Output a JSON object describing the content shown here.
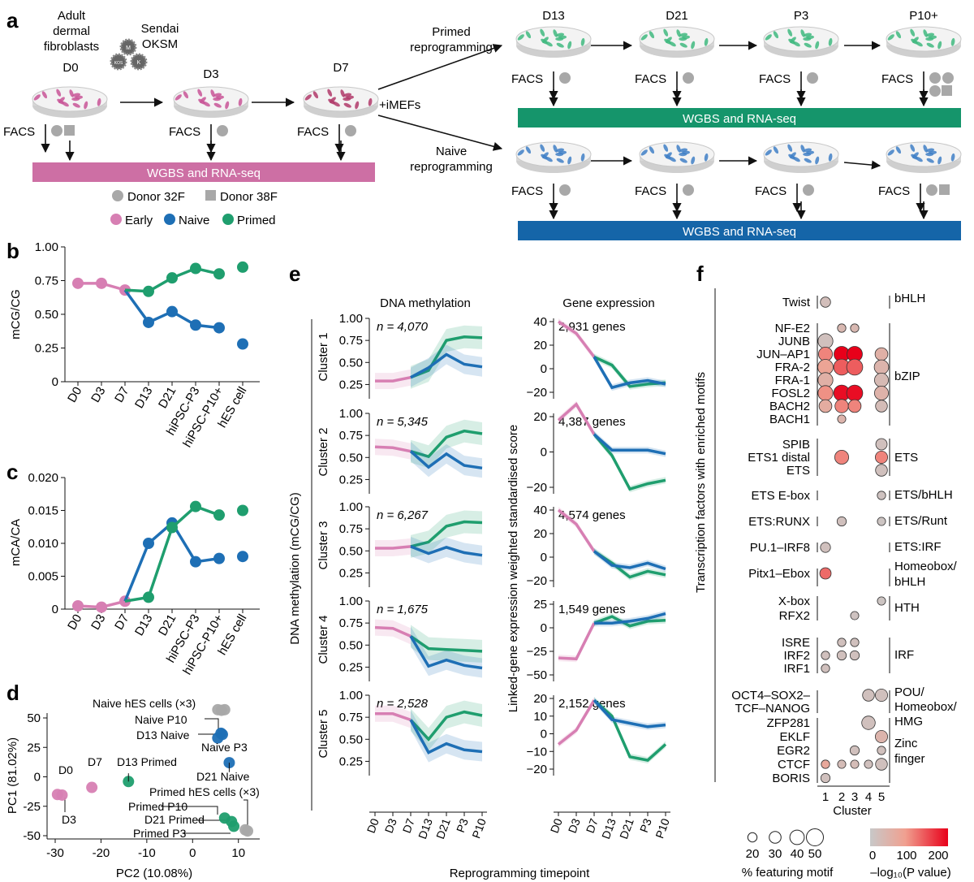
{
  "panels": {
    "a": "a",
    "b": "b",
    "c": "c",
    "d": "d",
    "e": "e",
    "f": "f"
  },
  "colors": {
    "early": "#d77fb3",
    "naive": "#1e6fb5",
    "primed": "#1f9e6e",
    "grey": "#a8a8a8",
    "wgbs_early": "#cd6fa4",
    "wgbs_primed": "#15956b",
    "wgbs_naive": "#1565a8",
    "dish_rim": "#dcdcdc",
    "cells_early": "#c85596",
    "cells_primed": "#3fb97f",
    "cells_naive": "#3f7fc6"
  },
  "panel_a": {
    "source_label": [
      "Adult",
      "dermal",
      "fibroblasts"
    ],
    "virus_label": [
      "Sendai",
      "OKSM"
    ],
    "virus_letters": [
      "M",
      "KOS",
      "K"
    ],
    "days_early": [
      "D0",
      "D3",
      "D7"
    ],
    "days_late": [
      "D13",
      "D21",
      "P3",
      "P10+"
    ],
    "facs": "FACS",
    "imefs": "+iMEFs",
    "primed_route": [
      "Primed",
      "reprogramming"
    ],
    "naive_route": [
      "Naive",
      "reprogramming"
    ],
    "wgbs_label": "WGBS and RNA-seq",
    "donor_circle": "Donor 32F",
    "donor_square": "Donor 38F",
    "legend": [
      "Early",
      "Naive",
      "Primed"
    ]
  },
  "chart_data": [
    {
      "id": "b",
      "type": "line",
      "ylabel": "mCG/CG",
      "ylim": [
        0,
        1.0
      ],
      "yticks": [
        "0",
        "0.25",
        "0.50",
        "0.75",
        "1.00"
      ],
      "categories": [
        "D0",
        "D3",
        "D7",
        "D13",
        "D21",
        "hiPSC-P3",
        "hiPSC-P10+",
        "hES cell"
      ],
      "early": [
        0.73,
        0.73,
        0.68
      ],
      "naive": [
        0.68,
        0.44,
        0.52,
        0.42,
        0.4
      ],
      "primed": [
        0.68,
        0.67,
        0.77,
        0.84,
        0.8
      ],
      "naive_hes": 0.28,
      "primed_hes": 0.85
    },
    {
      "id": "c",
      "type": "line",
      "ylabel": "mCA/CA",
      "ylim": [
        0,
        0.02
      ],
      "yticks": [
        "0",
        "0.005",
        "0.010",
        "0.015",
        "0.020"
      ],
      "categories": [
        "D0",
        "D3",
        "D7",
        "D13",
        "D21",
        "hiPSC-P3",
        "hiPSC-P10+",
        "hES cell"
      ],
      "early": [
        0.0005,
        0.0003,
        0.0012
      ],
      "naive": [
        0.0012,
        0.01,
        0.0131,
        0.0072,
        0.0077
      ],
      "primed": [
        0.0012,
        0.0018,
        0.0124,
        0.0156,
        0.0143
      ],
      "naive_hes": 0.008,
      "primed_hes": 0.015
    },
    {
      "id": "d",
      "type": "scatter",
      "xlabel": "PC2 (10.08%)",
      "ylabel": "PC1 (81.02%)",
      "xlim": [
        -32,
        13
      ],
      "ylim": [
        -52,
        66
      ],
      "xticks": [
        "-30",
        "-20",
        "-10",
        "0",
        "10"
      ],
      "yticks": [
        "-50",
        "-25",
        "0",
        "25",
        "50"
      ],
      "points": [
        {
          "group": "early",
          "x": -29.5,
          "y": -15,
          "label": "D0"
        },
        {
          "group": "early",
          "x": -28.5,
          "y": -15.5,
          "label": "D3"
        },
        {
          "group": "early",
          "x": -22,
          "y": -9,
          "label": "D7"
        },
        {
          "group": "primed",
          "x": -14,
          "y": -4,
          "label": "D13 Primed"
        },
        {
          "group": "naive",
          "x": 8,
          "y": 12,
          "label": "D21 Naive"
        },
        {
          "group": "naive",
          "x": 6.5,
          "y": 36,
          "label": "D13 Naive"
        },
        {
          "group": "naive",
          "x": 5.5,
          "y": 33,
          "label": "Naive P3"
        },
        {
          "group": "naive",
          "x": 6.2,
          "y": 37,
          "label": "Naive P10"
        },
        {
          "group": "grey",
          "x": 5.5,
          "y": 57,
          "label": "Naive hES cells (×3)"
        },
        {
          "group": "grey",
          "x": 6.3,
          "y": 56.5,
          "label": ""
        },
        {
          "group": "grey",
          "x": 7,
          "y": 57,
          "label": ""
        },
        {
          "group": "primed",
          "x": 7,
          "y": -35,
          "label": "Primed P10"
        },
        {
          "group": "primed",
          "x": 8.5,
          "y": -38,
          "label": "D21 Primed"
        },
        {
          "group": "primed",
          "x": 9,
          "y": -42,
          "label": "Primed P3"
        },
        {
          "group": "grey",
          "x": 11.5,
          "y": -45,
          "label": "Primed hES cells (×3)"
        },
        {
          "group": "grey",
          "x": 12,
          "y": -46,
          "label": ""
        }
      ]
    },
    {
      "id": "e",
      "type": "line",
      "title_left": "DNA methylation",
      "title_right": "Gene expression",
      "ylabel_left": "DNA methylation (mCG/CG)",
      "ylabel_right": "Linked-gene expression weighted standardised score",
      "xlabel": "Reprogramming timepoint",
      "timepoints": [
        "D0",
        "D3",
        "D7",
        "D13",
        "D21",
        "P3",
        "P10"
      ],
      "meth_yticks": [
        "0.25",
        "0.50",
        "0.75",
        "1.00"
      ],
      "clusters": [
        {
          "name": "Cluster 1",
          "n_label": "n = 4,070",
          "genes_label": "2,931 genes",
          "expr_range": [
            -20,
            40
          ],
          "expr_ticks": [
            "-20",
            "0",
            "20",
            "40"
          ],
          "meth_early": [
            0.29,
            0.29,
            0.33
          ],
          "meth_naive": [
            0.33,
            0.44,
            0.59,
            0.48,
            0.45
          ],
          "meth_primed": [
            0.33,
            0.41,
            0.75,
            0.79,
            0.78
          ],
          "expr_early": [
            40,
            30,
            10
          ],
          "expr_naive": [
            10,
            -16,
            -12,
            -10,
            -13
          ],
          "expr_primed": [
            10,
            3,
            -15,
            -13,
            -12
          ]
        },
        {
          "name": "Cluster 2",
          "n_label": "n = 5,345",
          "genes_label": "4,387 genes",
          "expr_range": [
            -20,
            20
          ],
          "expr_ticks": [
            "-20",
            "0",
            "20"
          ],
          "meth_early": [
            0.62,
            0.61,
            0.57
          ],
          "meth_naive": [
            0.57,
            0.39,
            0.54,
            0.41,
            0.38
          ],
          "meth_primed": [
            0.57,
            0.51,
            0.73,
            0.8,
            0.77
          ],
          "expr_early": [
            18,
            27,
            10
          ],
          "expr_naive": [
            10,
            1,
            1,
            1,
            -1
          ],
          "expr_primed": [
            10,
            -2,
            -21,
            -18,
            -16
          ]
        },
        {
          "name": "Cluster 3",
          "n_label": "n = 6,267",
          "genes_label": "4,574 genes",
          "expr_range": [
            -20,
            40
          ],
          "expr_ticks": [
            "-20",
            "0",
            "20",
            "40"
          ],
          "meth_early": [
            0.53,
            0.53,
            0.55
          ],
          "meth_naive": [
            0.55,
            0.47,
            0.54,
            0.48,
            0.45
          ],
          "meth_primed": [
            0.55,
            0.6,
            0.78,
            0.83,
            0.82
          ],
          "expr_early": [
            40,
            28,
            5
          ],
          "expr_naive": [
            5,
            -7,
            -9,
            -5,
            -10
          ],
          "expr_primed": [
            5,
            -5,
            -17,
            -12,
            -15
          ]
        },
        {
          "name": "Cluster 4",
          "n_label": "n = 1,675",
          "genes_label": "1,549 genes",
          "expr_range": [
            -50,
            25
          ],
          "expr_ticks": [
            "-50",
            "-25",
            "0",
            "25"
          ],
          "meth_early": [
            0.7,
            0.69,
            0.6
          ],
          "meth_naive": [
            0.6,
            0.26,
            0.33,
            0.27,
            0.24
          ],
          "meth_primed": [
            0.6,
            0.46,
            0.45,
            0.44,
            0.43
          ],
          "expr_early": [
            -32,
            -33,
            5
          ],
          "expr_naive": [
            5,
            5,
            7,
            10,
            15
          ],
          "expr_primed": [
            5,
            12,
            2,
            7,
            8
          ]
        },
        {
          "name": "Cluster 5",
          "n_label": "n = 2,528",
          "genes_label": "2,152 genes",
          "expr_range": [
            -20,
            20
          ],
          "expr_ticks": [
            "-20",
            "-10",
            "0",
            "10",
            "20"
          ],
          "meth_early": [
            0.79,
            0.79,
            0.72
          ],
          "meth_naive": [
            0.72,
            0.35,
            0.45,
            0.38,
            0.36
          ],
          "meth_primed": [
            0.72,
            0.5,
            0.75,
            0.81,
            0.77
          ],
          "expr_early": [
            -6,
            2,
            19
          ],
          "expr_naive": [
            19,
            8,
            6,
            4,
            5
          ],
          "expr_primed": [
            19,
            10,
            -13,
            -15,
            -6
          ]
        }
      ]
    },
    {
      "id": "f",
      "type": "scatter",
      "ylabel": "Transcription factors with enriched motifs",
      "xlabel": "Cluster",
      "clusters": [
        "1",
        "2",
        "3",
        "4",
        "5"
      ],
      "rows": [
        "Twist",
        "NF-E2",
        "JUNB",
        "JUN–AP1",
        "FRA-2",
        "FRA-1",
        "FOSL2",
        "BACH2",
        "BACH1",
        "SPIB",
        "ETS1 distal",
        "ETS",
        "ETS E-box",
        "ETS:RUNX",
        "PU.1–IRF8",
        "Pitx1–Ebox",
        "X-box",
        "RFX2",
        "ISRE",
        "IRF2",
        "IRF1",
        "OCT4–SOX2–",
        "TCF–NANOG",
        "ZFP281",
        "EKLF",
        "EGR2",
        "CTCF",
        "BORIS"
      ],
      "families": [
        "bHLH",
        "bZIP",
        "ETS",
        "ETS/bHLH",
        "ETS/Runt",
        "ETS:IRF",
        "Homeobox/",
        "bHLH",
        "HTH",
        "IRF",
        "POU/",
        "Homeobox/",
        "HMG",
        "Zinc",
        "finger"
      ],
      "points": [
        {
          "row": 0,
          "c": 1,
          "pct": 24,
          "logp": 25
        },
        {
          "row": 1,
          "c": 2,
          "pct": 17,
          "logp": 40
        },
        {
          "row": 1,
          "c": 3,
          "pct": 17,
          "logp": 40
        },
        {
          "row": 2,
          "c": 1,
          "pct": 42,
          "logp": 20
        },
        {
          "row": 3,
          "c": 1,
          "pct": 38,
          "logp": 120
        },
        {
          "row": 3,
          "c": 2,
          "pct": 44,
          "logp": 230
        },
        {
          "row": 3,
          "c": 3,
          "pct": 44,
          "logp": 230
        },
        {
          "row": 3,
          "c": 5,
          "pct": 34,
          "logp": 60
        },
        {
          "row": 4,
          "c": 1,
          "pct": 44,
          "logp": 90
        },
        {
          "row": 4,
          "c": 2,
          "pct": 46,
          "logp": 150
        },
        {
          "row": 4,
          "c": 3,
          "pct": 46,
          "logp": 150
        },
        {
          "row": 4,
          "c": 5,
          "pct": 40,
          "logp": 50
        },
        {
          "row": 5,
          "c": 1,
          "pct": 42,
          "logp": 60
        },
        {
          "row": 5,
          "c": 5,
          "pct": 38,
          "logp": 35
        },
        {
          "row": 6,
          "c": 1,
          "pct": 42,
          "logp": 110
        },
        {
          "row": 6,
          "c": 2,
          "pct": 46,
          "logp": 210
        },
        {
          "row": 6,
          "c": 3,
          "pct": 46,
          "logp": 210
        },
        {
          "row": 6,
          "c": 5,
          "pct": 38,
          "logp": 55
        },
        {
          "row": 7,
          "c": 1,
          "pct": 34,
          "logp": 70
        },
        {
          "row": 7,
          "c": 2,
          "pct": 36,
          "logp": 120
        },
        {
          "row": 7,
          "c": 3,
          "pct": 34,
          "logp": 120
        },
        {
          "row": 7,
          "c": 5,
          "pct": 30,
          "logp": 30
        },
        {
          "row": 8,
          "c": 2,
          "pct": 16,
          "logp": 50
        },
        {
          "row": 10,
          "c": 2,
          "pct": 38,
          "logp": 120
        },
        {
          "row": 9,
          "c": 5,
          "pct": 28,
          "logp": 20
        },
        {
          "row": 10,
          "c": 5,
          "pct": 32,
          "logp": 120
        },
        {
          "row": 11,
          "c": 5,
          "pct": 30,
          "logp": 20
        },
        {
          "row": 12,
          "c": 5,
          "pct": 17,
          "logp": 15
        },
        {
          "row": 13,
          "c": 2,
          "pct": 20,
          "logp": 20
        },
        {
          "row": 13,
          "c": 5,
          "pct": 16,
          "logp": 10
        },
        {
          "row": 14,
          "c": 1,
          "pct": 23,
          "logp": 20
        },
        {
          "row": 15,
          "c": 1,
          "pct": 28,
          "logp": 140
        },
        {
          "row": 16,
          "c": 5,
          "pct": 16,
          "logp": 10
        },
        {
          "row": 17,
          "c": 3,
          "pct": 16,
          "logp": 15
        },
        {
          "row": 18,
          "c": 2,
          "pct": 17,
          "logp": 20
        },
        {
          "row": 18,
          "c": 3,
          "pct": 17,
          "logp": 20
        },
        {
          "row": 19,
          "c": 1,
          "pct": 17,
          "logp": 20
        },
        {
          "row": 19,
          "c": 2,
          "pct": 20,
          "logp": 20
        },
        {
          "row": 19,
          "c": 3,
          "pct": 20,
          "logp": 20
        },
        {
          "row": 20,
          "c": 1,
          "pct": 17,
          "logp": 20
        },
        {
          "row": 21,
          "c": 4,
          "pct": 30,
          "logp": 20
        },
        {
          "row": 21,
          "c": 5,
          "pct": 32,
          "logp": 20
        },
        {
          "row": 23,
          "c": 4,
          "pct": 36,
          "logp": 20
        },
        {
          "row": 24,
          "c": 5,
          "pct": 32,
          "logp": 50
        },
        {
          "row": 25,
          "c": 5,
          "pct": 17,
          "logp": 20
        },
        {
          "row": 25,
          "c": 3,
          "pct": 20,
          "logp": 20
        },
        {
          "row": 26,
          "c": 1,
          "pct": 17,
          "logp": 80
        },
        {
          "row": 26,
          "c": 2,
          "pct": 16,
          "logp": 30
        },
        {
          "row": 26,
          "c": 3,
          "pct": 16,
          "logp": 30
        },
        {
          "row": 26,
          "c": 4,
          "pct": 16,
          "logp": 20
        },
        {
          "row": 26,
          "c": 5,
          "pct": 30,
          "logp": 20
        },
        {
          "row": 27,
          "c": 1,
          "pct": 20,
          "logp": 20
        }
      ],
      "size_legend": {
        "values": [
          "20",
          "30",
          "40",
          "50"
        ],
        "label": "% featuring motif"
      },
      "color_legend": {
        "ticks": [
          "0",
          "100",
          "200"
        ],
        "label": "–log₁₀(P value)"
      }
    }
  ]
}
